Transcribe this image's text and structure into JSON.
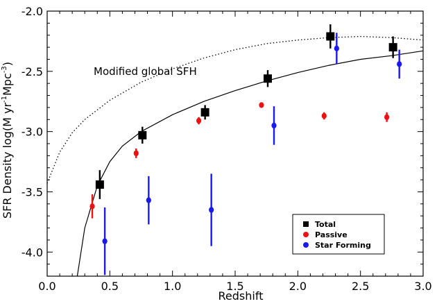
{
  "chart_data": {
    "type": "scatter",
    "xlabel": "Redshift",
    "ylabel": "SFR Density log(M yr",
    "ylabel_sup1": "-1",
    "ylabel_mid": "Mpc",
    "ylabel_sup2": "-3",
    "ylabel_end": ")",
    "xlim": [
      0.0,
      3.0
    ],
    "ylim": [
      -4.2,
      -2.0
    ],
    "x_ticks": [
      "0.0",
      "0.5",
      "1.0",
      "1.5",
      "2.0",
      "2.5",
      "3.0"
    ],
    "y_ticks": [
      "-2.0",
      "-2.5",
      "-3.0",
      "-3.5",
      "-4.0"
    ],
    "x_tick_values": [
      0.0,
      0.5,
      1.0,
      1.5,
      2.0,
      2.5,
      3.0
    ],
    "y_tick_values": [
      -2.0,
      -2.5,
      -3.0,
      -3.5,
      -4.0
    ],
    "annotation": "Modified global SFH",
    "legend_position": "bottom-right",
    "series": [
      {
        "name": "Total",
        "color": "#000000",
        "marker": "square",
        "points": [
          {
            "x": 0.42,
            "y": -3.44,
            "err": 0.12
          },
          {
            "x": 0.76,
            "y": -3.03,
            "err": 0.07
          },
          {
            "x": 1.26,
            "y": -2.84,
            "err": 0.06
          },
          {
            "x": 1.76,
            "y": -2.56,
            "err": 0.07
          },
          {
            "x": 2.26,
            "y": -2.21,
            "err": 0.1
          },
          {
            "x": 2.76,
            "y": -2.3,
            "err": 0.09
          }
        ]
      },
      {
        "name": "Passive",
        "color": "#ee1111",
        "marker": "circle",
        "points": [
          {
            "x": 0.36,
            "y": -3.62,
            "err": 0.1
          },
          {
            "x": 0.71,
            "y": -3.18,
            "err": 0.04
          },
          {
            "x": 1.21,
            "y": -2.91,
            "err": 0.03
          },
          {
            "x": 1.71,
            "y": -2.78,
            "err": 0.02
          },
          {
            "x": 2.21,
            "y": -2.87,
            "err": 0.03
          },
          {
            "x": 2.71,
            "y": -2.88,
            "err": 0.04
          }
        ]
      },
      {
        "name": "Star Forming",
        "color": "#1a1aee",
        "marker": "circle",
        "points": [
          {
            "x": 0.46,
            "y": -3.91,
            "err": 0.28
          },
          {
            "x": 0.81,
            "y": -3.57,
            "err": 0.2
          },
          {
            "x": 1.31,
            "y": -3.65,
            "err": 0.3
          },
          {
            "x": 1.81,
            "y": -2.95,
            "err": 0.16
          },
          {
            "x": 2.31,
            "y": -2.31,
            "err": 0.13
          },
          {
            "x": 2.81,
            "y": -2.44,
            "err": 0.12
          }
        ]
      }
    ],
    "curves": [
      {
        "name": "global SFH",
        "style": "solid",
        "points": [
          [
            0.24,
            -4.2
          ],
          [
            0.3,
            -3.8
          ],
          [
            0.4,
            -3.45
          ],
          [
            0.5,
            -3.25
          ],
          [
            0.6,
            -3.12
          ],
          [
            0.75,
            -3.0
          ],
          [
            1.0,
            -2.86
          ],
          [
            1.25,
            -2.75
          ],
          [
            1.5,
            -2.66
          ],
          [
            1.75,
            -2.58
          ],
          [
            2.0,
            -2.51
          ],
          [
            2.25,
            -2.45
          ],
          [
            2.5,
            -2.4
          ],
          [
            2.75,
            -2.37
          ],
          [
            3.0,
            -2.33
          ]
        ]
      },
      {
        "name": "Modified global SFH",
        "style": "dotted",
        "points": [
          [
            0.0,
            -3.43
          ],
          [
            0.05,
            -3.3
          ],
          [
            0.1,
            -3.17
          ],
          [
            0.2,
            -3.01
          ],
          [
            0.3,
            -2.9
          ],
          [
            0.5,
            -2.74
          ],
          [
            0.75,
            -2.59
          ],
          [
            1.0,
            -2.48
          ],
          [
            1.25,
            -2.39
          ],
          [
            1.5,
            -2.32
          ],
          [
            1.75,
            -2.27
          ],
          [
            2.0,
            -2.24
          ],
          [
            2.25,
            -2.22
          ],
          [
            2.5,
            -2.21
          ],
          [
            2.75,
            -2.22
          ],
          [
            3.0,
            -2.24
          ]
        ]
      }
    ]
  }
}
